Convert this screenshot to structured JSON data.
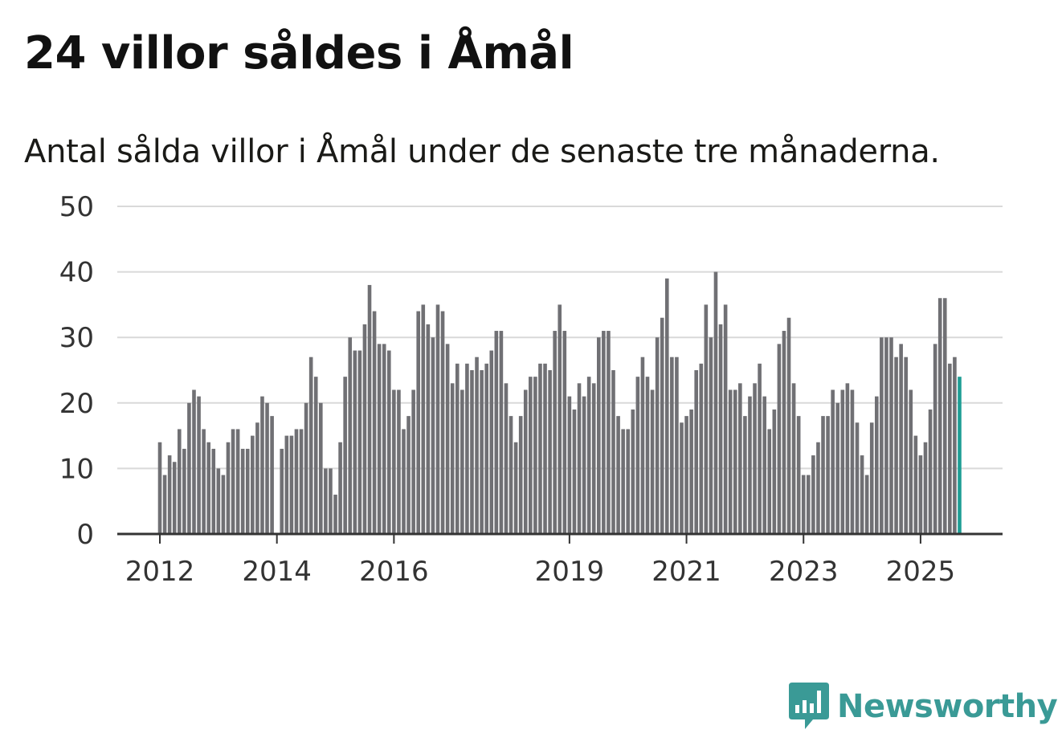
{
  "title": "24 villor såldes i Åmål",
  "subtitle": "Antal sålda villor i Åmål under de senaste tre månaderna.",
  "brand": {
    "name": "Newsworthy",
    "color": "#3a9a96",
    "icon": "bar-chart-logo-icon"
  },
  "chart_data": {
    "type": "bar",
    "ylim": [
      0,
      50
    ],
    "yticks": [
      0,
      10,
      20,
      30,
      40,
      50
    ],
    "xtick_labels": [
      "2012",
      "2014",
      "2016",
      "2019",
      "2021",
      "2023",
      "2025"
    ],
    "xtick_index": [
      0,
      24,
      48,
      84,
      108,
      132,
      156
    ],
    "start": "2012-01",
    "bar_color": "#707074",
    "highlight_color": "#1e9e95",
    "annotation": {
      "label": "24",
      "index": 165
    },
    "values": [
      14,
      9,
      12,
      11,
      16,
      13,
      20,
      22,
      21,
      16,
      14,
      13,
      10,
      9,
      14,
      16,
      16,
      13,
      13,
      15,
      17,
      21,
      20,
      18,
      0,
      13,
      15,
      15,
      16,
      16,
      20,
      27,
      24,
      20,
      10,
      10,
      6,
      14,
      24,
      30,
      28,
      28,
      32,
      38,
      34,
      29,
      29,
      28,
      22,
      22,
      16,
      18,
      22,
      34,
      35,
      32,
      30,
      35,
      34,
      29,
      23,
      26,
      22,
      26,
      25,
      27,
      25,
      26,
      28,
      31,
      31,
      23,
      18,
      14,
      18,
      22,
      24,
      24,
      26,
      26,
      25,
      31,
      35,
      31,
      21,
      19,
      23,
      21,
      24,
      23,
      30,
      31,
      31,
      25,
      18,
      16,
      16,
      19,
      24,
      27,
      24,
      22,
      30,
      33,
      39,
      27,
      27,
      17,
      18,
      19,
      25,
      26,
      35,
      30,
      40,
      32,
      35,
      22,
      22,
      23,
      18,
      21,
      23,
      26,
      21,
      16,
      19,
      29,
      31,
      33,
      23,
      18,
      9,
      9,
      12,
      14,
      18,
      18,
      22,
      20,
      22,
      23,
      22,
      17,
      12,
      9,
      17,
      21,
      30,
      30,
      30,
      27,
      29,
      27,
      22,
      15,
      12,
      14,
      19,
      29,
      36,
      36,
      26,
      27,
      24
    ]
  }
}
